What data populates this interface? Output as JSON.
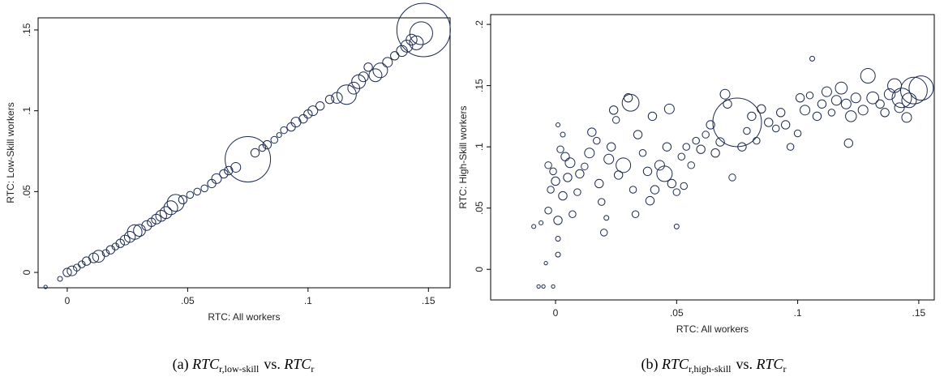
{
  "chart_data": [
    {
      "type": "bubble",
      "xlabel": "RTC: All workers",
      "ylabel": "RTC: Low-Skill workers",
      "color": "#1a2a4f",
      "caption": {
        "label": "(a)",
        "lhs": "RTC",
        "lhs_sub": "r,low-skill",
        "mid": "vs.",
        "rhs": "RTC",
        "rhs_sub": "r"
      },
      "xlim": [
        -0.0121,
        0.159
      ],
      "ylim": [
        -0.0095,
        0.1575
      ],
      "xticks": [
        0,
        {
          "value": 0.05,
          "label": ".05"
        },
        {
          "value": 0.1,
          "label": ".1"
        },
        {
          "value": 0.15,
          "label": ".15"
        }
      ],
      "yticks": [
        0,
        {
          "value": 0.05,
          "label": ".05"
        },
        {
          "value": 0.1,
          "label": ".1"
        },
        {
          "value": 0.15,
          "label": ".15"
        }
      ],
      "x": [
        -0.009,
        -0.003,
        0,
        0.002,
        0.004,
        0.006,
        0.008,
        0.011,
        0.013,
        0.016,
        0.018,
        0.02,
        0.022,
        0.024,
        0.026,
        0.028,
        0.03,
        0.033,
        0.035,
        0.037,
        0.039,
        0.041,
        0.043,
        0.045,
        0.048,
        0.051,
        0.054,
        0.057,
        0.06,
        0.062,
        0.065,
        0.067,
        0.07,
        0.075,
        0.078,
        0.081,
        0.083,
        0.086,
        0.088,
        0.09,
        0.093,
        0.095,
        0.098,
        0.1,
        0.102,
        0.105,
        0.109,
        0.112,
        0.116,
        0.119,
        0.121,
        0.123,
        0.125,
        0.128,
        0.13,
        0.133,
        0.136,
        0.139,
        0.141,
        0.143,
        0.145,
        0.147,
        0.148
      ],
      "values": [
        -0.009,
        -0.004,
        0,
        0.001,
        0.003,
        0.005,
        0.007,
        0.009,
        0.01,
        0.012,
        0.014,
        0.016,
        0.018,
        0.02,
        0.022,
        0.025,
        0.026,
        0.029,
        0.031,
        0.033,
        0.035,
        0.037,
        0.04,
        0.043,
        0.045,
        0.048,
        0.05,
        0.052,
        0.055,
        0.058,
        0.061,
        0.063,
        0.065,
        0.07,
        0.074,
        0.077,
        0.079,
        0.082,
        0.085,
        0.088,
        0.09,
        0.093,
        0.095,
        0.098,
        0.1,
        0.103,
        0.107,
        0.108,
        0.11,
        0.114,
        0.118,
        0.121,
        0.127,
        0.122,
        0.125,
        0.13,
        0.134,
        0.137,
        0.14,
        0.144,
        0.142,
        0.148,
        0.15
      ],
      "sizes": [
        0.5,
        1,
        3,
        4,
        2,
        2,
        3,
        4,
        6,
        2,
        3,
        2,
        3,
        4,
        5,
        9,
        6,
        4,
        3,
        4,
        5,
        6,
        8,
        12,
        3,
        2,
        2,
        2,
        3,
        4,
        3,
        3,
        4,
        87,
        3,
        2,
        3,
        2,
        1,
        2,
        3,
        4,
        3,
        3,
        4,
        3,
        3,
        5,
        16,
        6,
        8,
        4,
        3,
        7,
        9,
        4,
        3,
        5,
        6,
        5,
        8,
        22,
        121
      ]
    },
    {
      "type": "bubble",
      "xlabel": "RTC: All workers",
      "ylabel": "RTC: High-Skill workers",
      "color": "#1a2a4f",
      "caption": {
        "label": "(b)",
        "lhs": "RTC",
        "lhs_sub": "r,high-skill",
        "mid": "vs.",
        "rhs": "RTC",
        "rhs_sub": "r"
      },
      "xlim": [
        -0.0268,
        0.1564
      ],
      "ylim": [
        -0.025,
        0.208
      ],
      "xticks": [
        0,
        {
          "value": 0.05,
          "label": ".05"
        },
        {
          "value": 0.1,
          "label": ".1"
        },
        {
          "value": 0.15,
          "label": ".15"
        }
      ],
      "yticks": [
        0,
        {
          "value": 0.05,
          "label": ".05"
        },
        {
          "value": 0.1,
          "label": ".1"
        },
        {
          "value": 0.15,
          "label": ".15"
        },
        {
          "value": 0.2,
          "label": ".2"
        }
      ],
      "x": [
        -0.007,
        -0.005,
        -0.001,
        -0.004,
        -0.009,
        -0.006,
        -0.003,
        -0.002,
        0,
        -0.001,
        -0.003,
        0.001,
        0.003,
        0.002,
        0.004,
        0.006,
        0.005,
        0.003,
        0.001,
        0.001,
        0.001,
        0.007,
        0.009,
        0.01,
        0.012,
        0.014,
        0.015,
        0.017,
        0.018,
        0.019,
        0.02,
        0.021,
        0.022,
        0.023,
        0.024,
        0.025,
        0.026,
        0.028,
        0.03,
        0.031,
        0.032,
        0.033,
        0.034,
        0.036,
        0.038,
        0.039,
        0.04,
        0.041,
        0.043,
        0.045,
        0.046,
        0.047,
        0.048,
        0.05,
        0.05,
        0.052,
        0.053,
        0.054,
        0.056,
        0.058,
        0.06,
        0.062,
        0.064,
        0.066,
        0.068,
        0.07,
        0.071,
        0.073,
        0.075,
        0.077,
        0.079,
        0.081,
        0.083,
        0.085,
        0.088,
        0.091,
        0.093,
        0.095,
        0.097,
        0.1,
        0.101,
        0.103,
        0.105,
        0.106,
        0.108,
        0.11,
        0.112,
        0.114,
        0.116,
        0.118,
        0.12,
        0.121,
        0.122,
        0.124,
        0.127,
        0.129,
        0.131,
        0.134,
        0.136,
        0.138,
        0.14,
        0.142,
        0.143,
        0.145,
        0.146,
        0.148,
        0.151
      ],
      "values": [
        -0.014,
        -0.014,
        -0.014,
        0.005,
        0.035,
        0.038,
        0.048,
        0.065,
        0.072,
        0.08,
        0.085,
        0.118,
        0.11,
        0.098,
        0.092,
        0.087,
        0.075,
        0.06,
        0.04,
        0.025,
        0.012,
        0.045,
        0.063,
        0.078,
        0.084,
        0.095,
        0.112,
        0.105,
        0.07,
        0.055,
        0.03,
        0.042,
        0.09,
        0.1,
        0.13,
        0.122,
        0.077,
        0.085,
        0.14,
        0.136,
        0.065,
        0.045,
        0.11,
        0.095,
        0.08,
        0.056,
        0.125,
        0.065,
        0.085,
        0.078,
        0.1,
        0.131,
        0.07,
        0.035,
        0.063,
        0.092,
        0.068,
        0.1,
        0.085,
        0.105,
        0.098,
        0.11,
        0.118,
        0.095,
        0.104,
        0.143,
        0.135,
        0.075,
        0.12,
        0.1,
        0.113,
        0.125,
        0.105,
        0.131,
        0.12,
        0.115,
        0.128,
        0.118,
        0.1,
        0.111,
        0.14,
        0.13,
        0.142,
        0.172,
        0.125,
        0.135,
        0.145,
        0.128,
        0.138,
        0.148,
        0.135,
        0.103,
        0.125,
        0.14,
        0.13,
        0.158,
        0.14,
        0.135,
        0.128,
        0.143,
        0.15,
        0.132,
        0.14,
        0.124,
        0.138,
        0.146,
        0.148
      ],
      "sizes": [
        0.5,
        0.5,
        0.5,
        0.5,
        0.7,
        0.7,
        2,
        2,
        3,
        2,
        2,
        0.7,
        1,
        2,
        3,
        4,
        3,
        3,
        3,
        1,
        1,
        2,
        2,
        3,
        2,
        4,
        3,
        2,
        3,
        2,
        2,
        1,
        4,
        3,
        3,
        2,
        3,
        9,
        3,
        12,
        2,
        2,
        3,
        2,
        3,
        3,
        3,
        3,
        4,
        10,
        3,
        4,
        3,
        1,
        2,
        2,
        2,
        2,
        2,
        2,
        3,
        2,
        3,
        3,
        3,
        4,
        3,
        2,
        100,
        3,
        2,
        3,
        2,
        3,
        3,
        2,
        3,
        3,
        2,
        2,
        3,
        4,
        2,
        1,
        3,
        3,
        4,
        2,
        4,
        6,
        4,
        3,
        5,
        4,
        4,
        9,
        6,
        3,
        3,
        5,
        8,
        4,
        16,
        4,
        9,
        30,
        25
      ]
    }
  ]
}
